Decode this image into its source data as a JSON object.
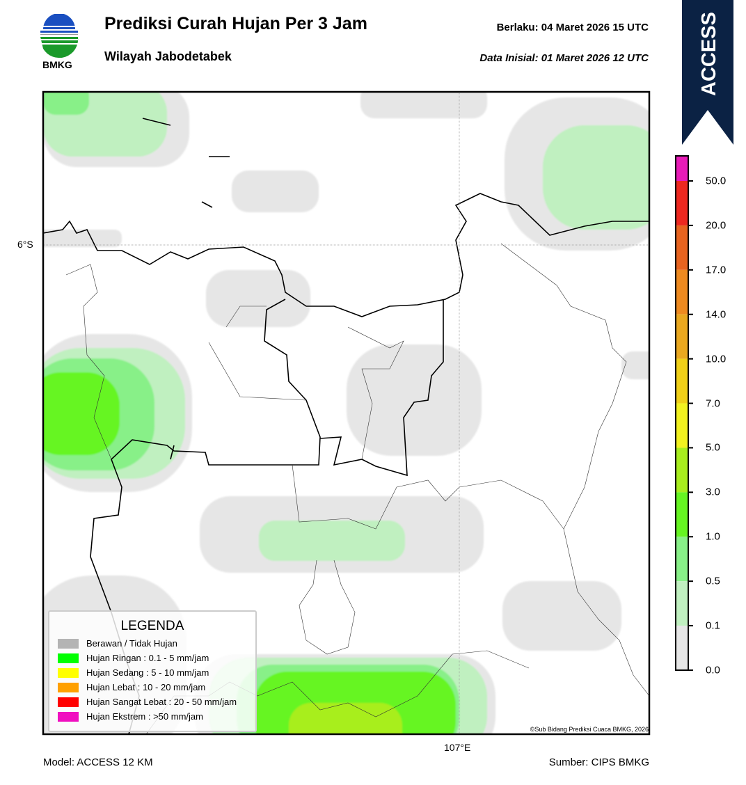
{
  "header": {
    "logo_text": "BMKG",
    "title": "Prediksi Curah Hujan Per 3 Jam",
    "subtitle": "Wilayah Jabodetabek",
    "berlaku": "Berlaku:  04 Maret 2026 15 UTC",
    "data_inisial": "Data Inisial:  01 Maret 2026 12 UTC"
  },
  "model_badge": "ACCESS",
  "map": {
    "lat_label": "6°S",
    "lon_label": "107°E",
    "copyright": "©Sub Bidang Prediksi Cuaca BMKG, 2026"
  },
  "legend": {
    "title": "LEGENDA",
    "items": [
      {
        "label": "Berawan / Tidak Hujan",
        "color": "#b4b4b4"
      },
      {
        "label": "Hujan Ringan : 0.1 - 5 mm/jam",
        "color": "#00ff00"
      },
      {
        "label": "Hujan Sedang : 5 - 10 mm/jam",
        "color": "#ffff00"
      },
      {
        "label": "Hujan Lebat : 10 - 20 mm/jam",
        "color": "#ffa000"
      },
      {
        "label": "Hujan Sangat Lebat : 20 - 50 mm/jam",
        "color": "#ff0000"
      },
      {
        "label": "Hujan Ekstrem : >50 mm/jam",
        "color": "#f010c0"
      }
    ]
  },
  "colorbar": {
    "ticks": [
      "50.0",
      "20.0",
      "17.0",
      "14.0",
      "10.0",
      "7.0",
      "5.0",
      "3.0",
      "1.0",
      "0.5",
      "0.1",
      "0.0"
    ],
    "colors": [
      "#e81cb8",
      "#ee2820",
      "#e86420",
      "#ee8a20",
      "#eaa820",
      "#f0d018",
      "#f2f220",
      "#a8ee1e",
      "#66f522",
      "#88f088",
      "#c0f0c0",
      "#e6e6e6"
    ]
  },
  "footer": {
    "model": "Model: ACCESS 12 KM",
    "source": "Sumber: CIPS BMKG"
  }
}
